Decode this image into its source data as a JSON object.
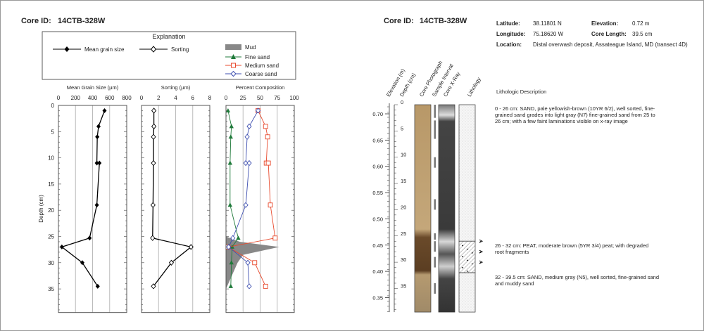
{
  "left": {
    "core_id_label": "Core ID:",
    "core_id": "14CTB-328W",
    "legend": {
      "title": "Explanation",
      "mean_grain_size": "Mean grain size",
      "sorting": "Sorting",
      "mud": "Mud",
      "fine_sand": "Fine sand",
      "medium_sand": "Medium sand",
      "coarse_sand": "Coarse sand"
    }
  },
  "right": {
    "core_id_label": "Core ID:",
    "core_id": "14CTB-328W",
    "latitude_label": "Latitude:",
    "latitude": "38.11801 N",
    "longitude_label": "Longitude:",
    "longitude": "75.18620 W",
    "elevation_label": "Elevation:",
    "elevation": "0.72 m",
    "core_length_label": "Core Length:",
    "core_length": "39.5 cm",
    "location_label": "Location:",
    "location": "Distal overwash deposit, Assateague Island, MD (transect 4D)",
    "column_headers": [
      "Elevation (m)",
      "Depth (cm)",
      "Core Photograph",
      "Sample Interval",
      "Core X-Ray",
      "Lithology"
    ],
    "description_title": "Lithologic Description",
    "descriptions": [
      {
        "depth_range": [
          0,
          26
        ],
        "lines": [
          "0 - 26 cm: SAND, pale yellowish-brown (10YR 6/2), well sorted, fine-",
          "grained sand grades into light gray (N7) fine-grained sand from 25 to",
          "26 cm; with a few faint laminations visible on x-ray image"
        ]
      },
      {
        "depth_range": [
          26,
          32
        ],
        "lines": [
          "26 - 32 cm: PEAT, moderate brown (5YR 3/4) peat; with degraded",
          "root fragments"
        ]
      },
      {
        "depth_range": [
          32,
          39.5
        ],
        "lines": [
          "32 - 39.5 cm: SAND, medium gray (N5), well sorted, fine-grained sand",
          "and muddy sand"
        ]
      }
    ],
    "elevation_ticks": [
      "0.70",
      "0.65",
      "0.60",
      "0.55",
      "0.50",
      "0.45",
      "0.40",
      "0.35"
    ],
    "depth_ticks": [
      "0",
      "5",
      "10",
      "15",
      "20",
      "25",
      "30",
      "35"
    ],
    "sample_intervals": [
      [
        0,
        2.5
      ],
      [
        3,
        6.5
      ],
      [
        10,
        12
      ],
      [
        18,
        20
      ],
      [
        24.5,
        25.7
      ],
      [
        26,
        28
      ],
      [
        29,
        31
      ],
      [
        34,
        36
      ]
    ],
    "root_marker_depths": [
      26,
      28,
      30
    ]
  },
  "chart_data": [
    {
      "type": "line",
      "title": "Mean Grain Size (µm)",
      "ylabel": "Depth (cm)",
      "xlim": [
        0,
        800
      ],
      "ylim": [
        0,
        39.5
      ],
      "xticks": [
        "0",
        "200",
        "400",
        "600",
        "800"
      ],
      "yticks": [
        "0",
        "5",
        "10",
        "15",
        "20",
        "25",
        "30",
        "35"
      ],
      "grid": true,
      "color": "#000000",
      "series": [
        {
          "name": "Mean grain size",
          "depth": [
            1,
            4,
            6,
            11,
            11,
            19,
            25.3,
            27,
            30,
            34.5
          ],
          "values": [
            540,
            470,
            455,
            450,
            480,
            450,
            365,
            40,
            280,
            460
          ]
        }
      ]
    },
    {
      "type": "line",
      "title": "Sorting (µm)",
      "xlim": [
        0,
        8
      ],
      "ylim": [
        0,
        39.5
      ],
      "xticks": [
        "0",
        "2",
        "4",
        "6",
        "8"
      ],
      "grid": true,
      "color": "#000000",
      "series": [
        {
          "name": "Sorting",
          "depth": [
            1,
            4,
            6,
            11,
            19,
            25.3,
            27,
            30,
            34.5
          ],
          "values": [
            1.45,
            1.45,
            1.4,
            1.4,
            1.35,
            1.3,
            5.8,
            3.5,
            1.4
          ]
        }
      ]
    },
    {
      "type": "line",
      "title": "Percent Composition",
      "xlim": [
        0,
        100
      ],
      "ylim": [
        0,
        39.5
      ],
      "xticks": [
        "0",
        "25",
        "50",
        "75",
        "100"
      ],
      "grid": true,
      "series": [
        {
          "name": "Mud",
          "kind": "area",
          "color": "#888888",
          "depth": [
            25,
            26,
            27,
            28.5,
            30,
            35
          ],
          "values": [
            0,
            20,
            78,
            25,
            17,
            0
          ]
        },
        {
          "name": "Fine sand",
          "color": "#1f7a3a",
          "marker": "triangle",
          "depth": [
            1,
            4,
            6,
            11,
            19,
            25.3,
            27,
            30,
            34.5
          ],
          "values": [
            3,
            8,
            7,
            6,
            6,
            18,
            9,
            8,
            7
          ]
        },
        {
          "name": "Medium sand",
          "color": "#e8492c",
          "marker": "square",
          "depth": [
            1,
            4,
            6,
            11,
            11,
            19,
            25.3,
            27,
            30,
            34.5
          ],
          "values": [
            47,
            58,
            61,
            59,
            62,
            65,
            72,
            3,
            42,
            58
          ]
        },
        {
          "name": "Coarse sand",
          "color": "#3e4fb0",
          "marker": "diamond",
          "depth": [
            1,
            4,
            6,
            11,
            11,
            19,
            25.3,
            27,
            30,
            34.5
          ],
          "values": [
            47,
            34,
            31,
            29,
            34,
            29,
            10,
            4,
            32,
            34
          ]
        }
      ]
    }
  ]
}
